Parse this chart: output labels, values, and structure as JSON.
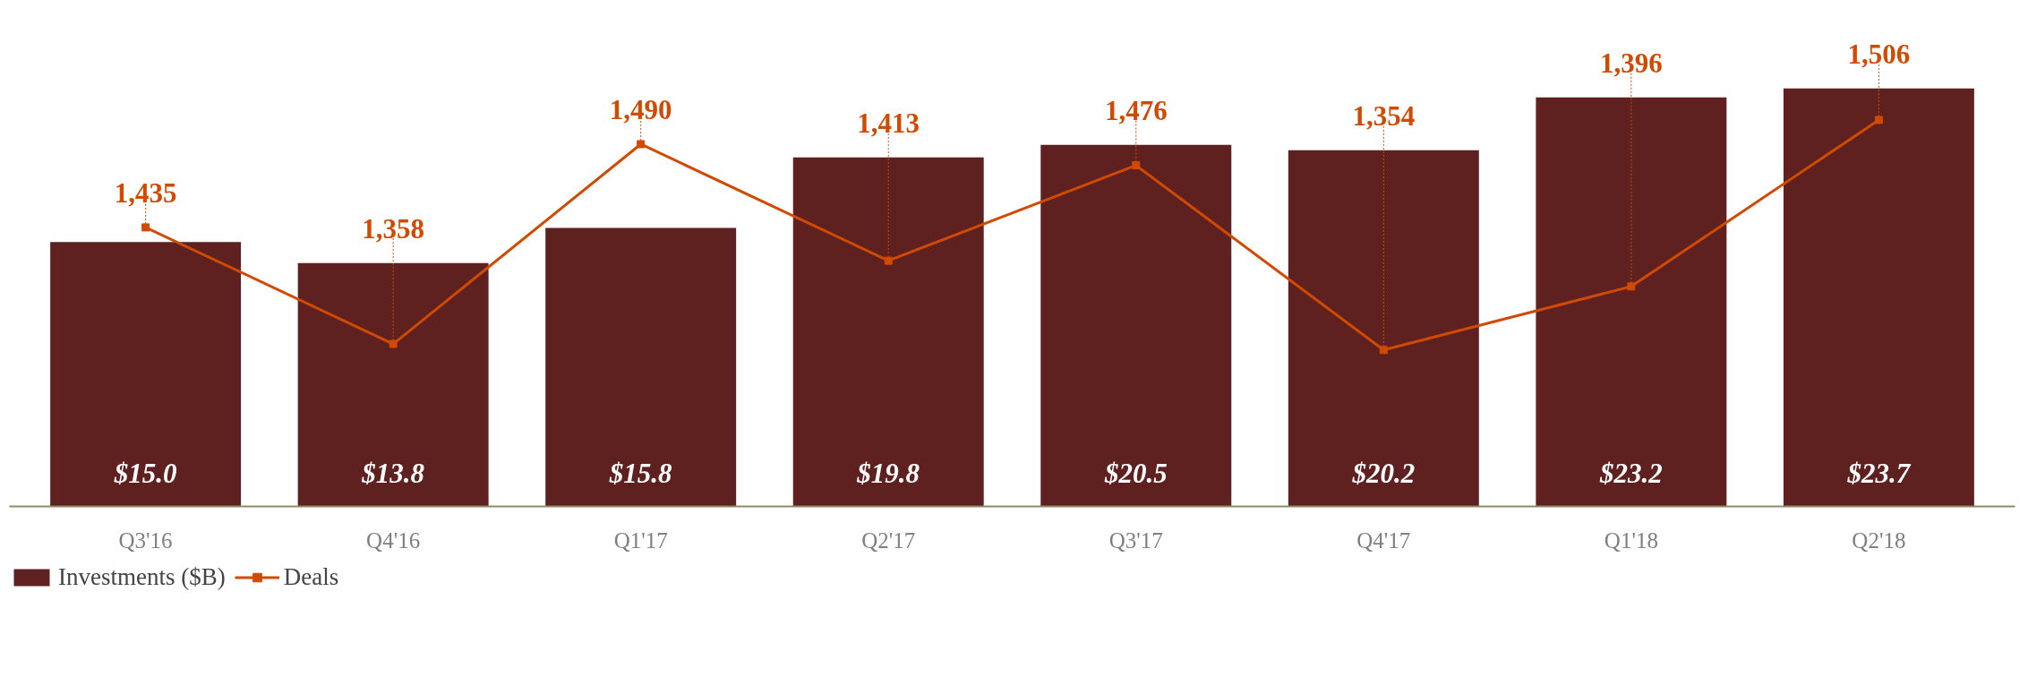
{
  "chart_data": {
    "type": "bar",
    "categories": [
      "Q3'16",
      "Q4'16",
      "Q1'17",
      "Q2'17",
      "Q3'17",
      "Q4'17",
      "Q1'18",
      "Q2'18"
    ],
    "series": [
      {
        "name": "Investments ($B)",
        "color": "#5e2120",
        "values": [
          15.0,
          13.8,
          15.8,
          19.8,
          20.5,
          20.2,
          23.2,
          23.7
        ],
        "value_labels": [
          "$15.0",
          "$13.8",
          "$15.8",
          "$19.8",
          "$20.5",
          "$20.2",
          "$23.2",
          "$23.7"
        ]
      },
      {
        "name": "Deals",
        "type": "line",
        "axis": "y2",
        "color": "#d04a02",
        "values": [
          1435,
          1358,
          1490,
          1413,
          1476,
          1354,
          1396,
          1506
        ],
        "value_labels": [
          "1,435",
          "1,358",
          "1,490",
          "1,413",
          "1,476",
          "1,354",
          "1,396",
          "1,506"
        ]
      }
    ],
    "tick_labels": "x",
    "grid": false,
    "legend": "bottom left",
    "marker": "square",
    "line_style": "solid"
  }
}
